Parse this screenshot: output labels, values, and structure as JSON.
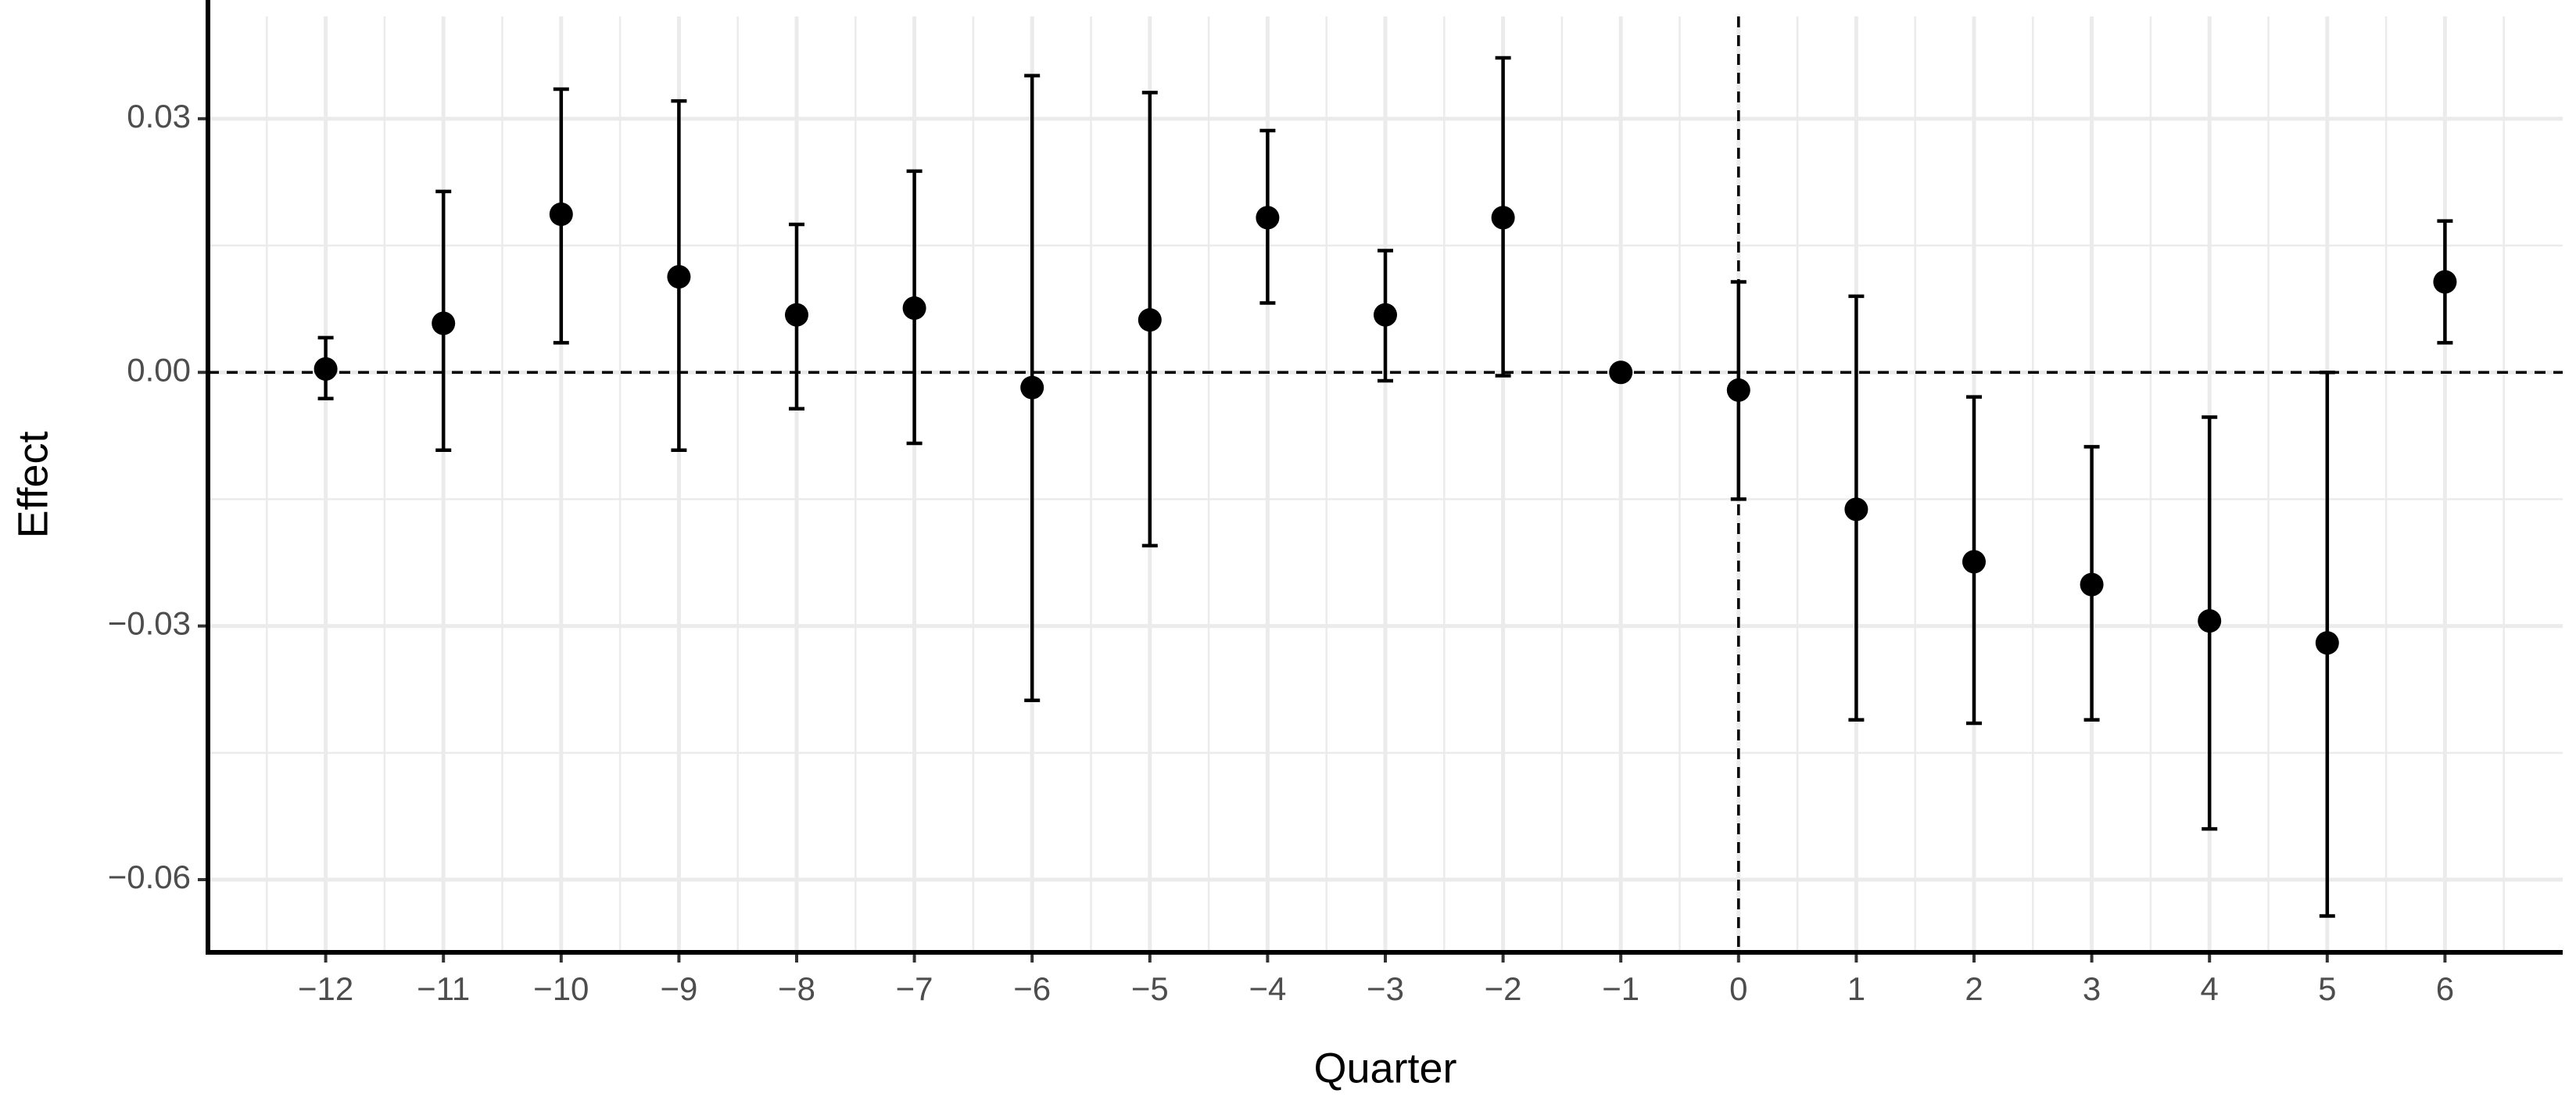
{
  "chart_data": {
    "type": "errorbar",
    "x_label": "Quarter",
    "y_label": "Effect",
    "x": [
      -12,
      -11,
      -10,
      -9,
      -8,
      -7,
      -6,
      -5,
      -4,
      -3,
      -2,
      -1,
      0,
      1,
      2,
      3,
      4,
      5,
      6
    ],
    "series": [
      {
        "color": "#000000",
        "values": [
          0.0004,
          0.0058,
          0.0187,
          0.0113,
          0.0068,
          0.0076,
          -0.0018,
          0.0062,
          0.0183,
          0.0068,
          0.0183,
          0,
          -0.0021,
          -0.0162,
          -0.0224,
          -0.0251,
          -0.0294,
          -0.032,
          0.0107
        ],
        "lower": [
          -0.0031,
          -0.0092,
          0.0035,
          -0.0092,
          -0.0043,
          -0.0084,
          -0.0388,
          -0.0205,
          0.0082,
          -0.001,
          -0.0004,
          null,
          -0.015,
          -0.0411,
          -0.0415,
          -0.0411,
          -0.054,
          -0.0643,
          0.0035
        ],
        "upper": [
          0.0041,
          0.0214,
          0.0335,
          0.0321,
          0.0175,
          0.0238,
          0.0351,
          0.0331,
          0.0286,
          0.0144,
          0.0372,
          null,
          0.0107,
          0.009,
          -0.0029,
          -0.0088,
          -0.0053,
          0,
          0.0179
        ]
      }
    ],
    "xlim": [
      -13,
      7
    ],
    "ylim": [
      -0.0686,
      0.0421
    ],
    "xticks": [
      {
        "value": -12,
        "label": "−12"
      },
      {
        "value": -11,
        "label": "−11"
      },
      {
        "value": -10,
        "label": "−10"
      },
      {
        "value": -9,
        "label": "−9"
      },
      {
        "value": -8,
        "label": "−8"
      },
      {
        "value": -7,
        "label": "−7"
      },
      {
        "value": -6,
        "label": "−6"
      },
      {
        "value": -5,
        "label": "−5"
      },
      {
        "value": -4,
        "label": "−4"
      },
      {
        "value": -3,
        "label": "−3"
      },
      {
        "value": -2,
        "label": "−2"
      },
      {
        "value": -1,
        "label": "−1"
      },
      0,
      1,
      2,
      3,
      4,
      5,
      6
    ],
    "yticks": [
      {
        "value": -0.06,
        "label": "−0.06"
      },
      {
        "value": -0.03,
        "label": "−0.03"
      },
      {
        "value": 0,
        "label": "0.00"
      },
      {
        "value": 0.03,
        "label": "0.03"
      }
    ],
    "grid": true,
    "reference_lines": {
      "x": 0,
      "y": 0
    }
  }
}
